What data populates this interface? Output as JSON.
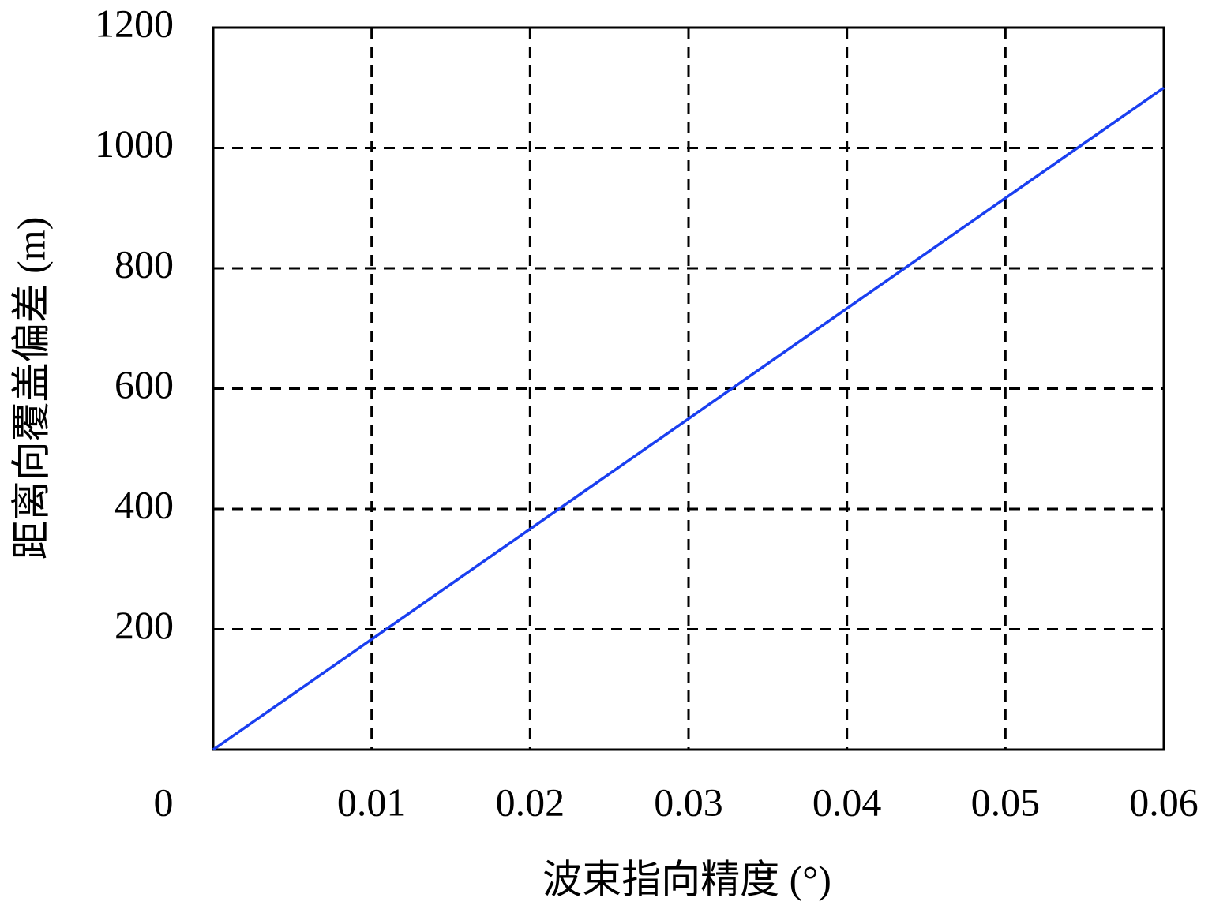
{
  "chart_data": {
    "type": "line",
    "xlabel": "波束指向精度 (°)",
    "ylabel": "距离向覆盖偏差 (m)",
    "x": [
      0,
      0.06
    ],
    "series": [
      {
        "color": "#1a3ff0",
        "values": [
          0,
          1100
        ]
      }
    ],
    "xlim": [
      0,
      0.06
    ],
    "xticks": [
      0,
      0.01,
      0.02,
      0.03,
      0.04,
      0.05,
      0.06
    ],
    "ylim": [
      0,
      1200
    ],
    "yticks": [
      200,
      400,
      600,
      800,
      1000,
      1200
    ],
    "grid": true
  }
}
